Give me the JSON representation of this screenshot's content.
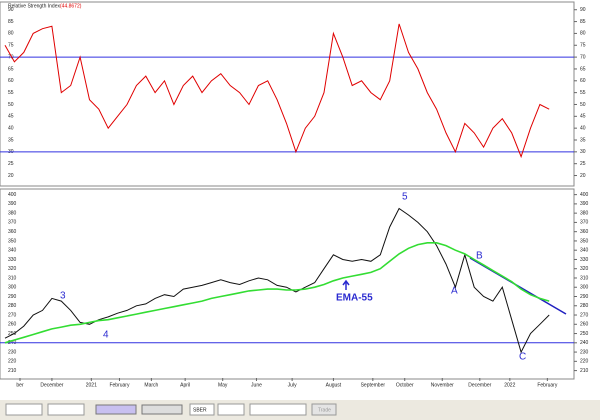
{
  "chart_data": [
    {
      "type": "line",
      "title": "Relative Strength Index",
      "subtitle": "(44.8672)",
      "x": [
        0,
        5,
        10,
        15,
        20,
        25,
        30,
        35,
        40,
        45,
        50,
        55,
        60,
        65,
        70,
        75,
        80,
        85,
        90,
        95,
        100,
        105,
        110,
        115,
        120,
        125,
        130,
        135,
        140,
        145,
        150,
        155,
        160,
        165,
        170,
        175,
        180,
        185,
        190,
        195,
        200,
        205,
        210,
        215,
        220,
        225,
        230,
        235,
        240,
        245,
        250,
        255,
        260,
        265,
        270,
        275,
        280,
        285,
        290
      ],
      "xlim": [
        0,
        300
      ],
      "series": [
        {
          "color": "#e00000",
          "values": [
            75,
            68,
            72,
            80,
            82,
            83,
            55,
            58,
            70,
            52,
            48,
            40,
            45,
            50,
            58,
            62,
            55,
            60,
            50,
            58,
            62,
            55,
            60,
            63,
            58,
            55,
            50,
            58,
            60,
            52,
            42,
            30,
            40,
            45,
            55,
            80,
            70,
            58,
            60,
            55,
            52,
            60,
            84,
            72,
            65,
            55,
            48,
            38,
            30,
            42,
            38,
            32,
            40,
            44,
            38,
            28,
            40,
            50,
            48
          ]
        }
      ],
      "ylim": [
        16,
        92
      ],
      "yticks": [
        20,
        25,
        30,
        35,
        40,
        45,
        50,
        55,
        60,
        65,
        70,
        75,
        80,
        85,
        90
      ],
      "reference_lines": [
        70,
        30
      ],
      "reference_color": "#3030e0"
    },
    {
      "type": "line",
      "x": [
        0,
        5,
        10,
        15,
        20,
        25,
        30,
        35,
        40,
        45,
        50,
        55,
        60,
        65,
        70,
        75,
        80,
        85,
        90,
        95,
        100,
        105,
        110,
        115,
        120,
        125,
        130,
        135,
        140,
        145,
        150,
        155,
        160,
        165,
        170,
        175,
        180,
        185,
        190,
        195,
        200,
        205,
        210,
        215,
        220,
        225,
        230,
        235,
        240,
        245,
        250,
        255,
        260,
        265,
        270,
        275,
        280,
        285,
        290
      ],
      "xlim": [
        0,
        300
      ],
      "xticks": [
        {
          "value": 8,
          "label": "ber"
        },
        {
          "value": 25,
          "label": "December"
        },
        {
          "value": 46,
          "label": "2021"
        },
        {
          "value": 61,
          "label": "February"
        },
        {
          "value": 78,
          "label": "March"
        },
        {
          "value": 96,
          "label": "April"
        },
        {
          "value": 116,
          "label": "May"
        },
        {
          "value": 134,
          "label": "June"
        },
        {
          "value": 153,
          "label": "July"
        },
        {
          "value": 175,
          "label": "August"
        },
        {
          "value": 196,
          "label": "September"
        },
        {
          "value": 213,
          "label": "October"
        },
        {
          "value": 233,
          "label": "November"
        },
        {
          "value": 253,
          "label": "December"
        },
        {
          "value": 269,
          "label": "2022"
        },
        {
          "value": 289,
          "label": "February"
        }
      ],
      "series": [
        {
          "color": "#111111",
          "values": [
            245,
            250,
            258,
            270,
            275,
            288,
            285,
            275,
            262,
            260,
            265,
            268,
            272,
            275,
            280,
            282,
            288,
            292,
            290,
            298,
            300,
            302,
            305,
            308,
            305,
            303,
            307,
            310,
            308,
            302,
            300,
            295,
            300,
            305,
            320,
            335,
            330,
            328,
            330,
            328,
            335,
            365,
            385,
            378,
            370,
            360,
            345,
            325,
            300,
            335,
            300,
            290,
            285,
            300,
            265,
            230,
            250,
            260,
            270
          ]
        },
        {
          "color": "#33dd33",
          "values": [
            240,
            243,
            246,
            249,
            252,
            255,
            257,
            259,
            260,
            262,
            264,
            265,
            267,
            269,
            271,
            273,
            275,
            277,
            279,
            281,
            283,
            285,
            288,
            290,
            292,
            294,
            296,
            297,
            298,
            298,
            297,
            297,
            298,
            300,
            303,
            307,
            310,
            312,
            314,
            316,
            320,
            328,
            336,
            342,
            346,
            348,
            348,
            345,
            340,
            336,
            330,
            324,
            318,
            312,
            306,
            298,
            292,
            288,
            285
          ]
        }
      ],
      "ylim": [
        202,
        405
      ],
      "yticks": [
        210,
        220,
        230,
        240,
        250,
        260,
        270,
        280,
        290,
        300,
        310,
        320,
        330,
        340,
        350,
        360,
        370,
        380,
        390,
        400
      ],
      "reference_lines": [
        240
      ],
      "reference_color": "#3030e0",
      "annotations": [
        "3",
        "4",
        "5",
        "A",
        "B",
        "C",
        "EMA-55"
      ]
    }
  ],
  "toolbar": {
    "symbol": "SBER",
    "button": "Trade"
  }
}
